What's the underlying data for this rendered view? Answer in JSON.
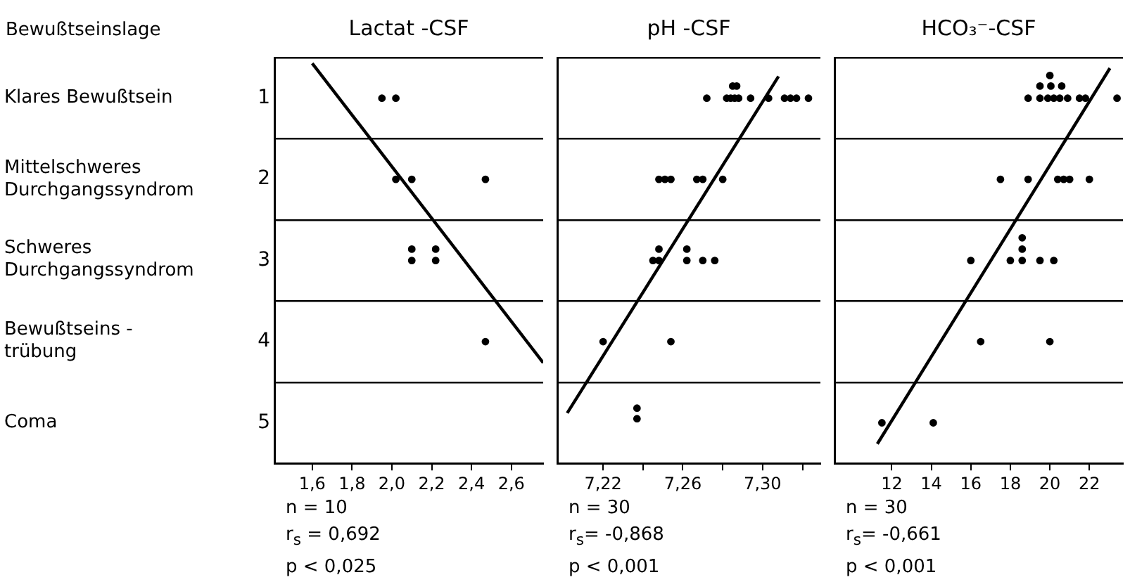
{
  "chart_data": [
    {
      "type": "other",
      "title": "Bewußtseinslage",
      "annotations": [
        "Klares Bewußtsein",
        "Mittelschweres\nDurchgangssyndrom",
        "Schweres\nDurchgangssyndrom",
        "Bewußtseins -\ntrübung",
        "Coma"
      ]
    },
    {
      "type": "scatter",
      "title": "Lactat -CSF",
      "grid": "y",
      "legend": false,
      "xlim": [
        1.41,
        2.76
      ],
      "xticks": [
        {
          "value": 1.6,
          "label": "1,6"
        },
        {
          "value": 1.8,
          "label": "1,8"
        },
        {
          "value": 2.0,
          "label": "2,0"
        },
        {
          "value": 2.2,
          "label": "2,2"
        },
        {
          "value": 2.4,
          "label": "2,4"
        },
        {
          "value": 2.6,
          "label": "2,6"
        }
      ],
      "ylim": [
        5.5,
        0.5
      ],
      "yticks": [
        1,
        2,
        3,
        4,
        5
      ],
      "series": [
        {
          "type": "scatter",
          "marker": "circle",
          "color": "#000000",
          "x": [
            1.95,
            2.02,
            2.02,
            2.1,
            2.47,
            2.1,
            2.1,
            2.22,
            2.22,
            2.47
          ],
          "values": [
            1,
            1,
            2,
            2,
            2,
            3,
            2.86,
            3,
            2.86,
            4
          ]
        },
        {
          "type": "line",
          "color": "#000000",
          "x": [
            1.6,
            2.76
          ],
          "values": [
            0.57,
            4.26
          ]
        }
      ],
      "annotations": [
        "n = 10",
        "r$_{s}$ = 0,692",
        "p < 0,025"
      ]
    },
    {
      "type": "scatter",
      "title": "pH -CSF",
      "grid": "y",
      "legend": false,
      "tick_labels": "x",
      "xlim": [
        7.197,
        7.329
      ],
      "xticks": [
        {
          "value": 7.22,
          "label": "7,22"
        },
        {
          "value": 7.24,
          "label": null
        },
        {
          "value": 7.26,
          "label": "7,26"
        },
        {
          "value": 7.28,
          "label": null
        },
        {
          "value": 7.3,
          "label": "7,30"
        },
        {
          "value": 7.32,
          "label": null
        }
      ],
      "ylim": [
        5.5,
        0.5
      ],
      "yticks": [
        1,
        2,
        3,
        4,
        5
      ],
      "series": [
        {
          "type": "scatter",
          "marker": "circle",
          "color": "#000000",
          "x": [
            7.272,
            7.282,
            7.284,
            7.286,
            7.288,
            7.294,
            7.303,
            7.311,
            7.314,
            7.317,
            7.323,
            7.285,
            7.287,
            7.248,
            7.251,
            7.254,
            7.267,
            7.27,
            7.28,
            7.245,
            7.248,
            7.248,
            7.262,
            7.262,
            7.27,
            7.276,
            7.22,
            7.254,
            7.237,
            7.237
          ],
          "values": [
            1,
            1,
            1,
            1,
            1,
            1,
            1,
            1,
            1,
            1,
            1,
            0.85,
            0.85,
            2,
            2,
            2,
            2,
            2,
            2,
            3,
            3,
            2.86,
            3,
            2.86,
            3,
            3,
            4,
            4,
            4.95,
            4.82
          ]
        },
        {
          "type": "line",
          "color": "#000000",
          "x": [
            7.202,
            7.308
          ],
          "values": [
            4.88,
            0.73
          ]
        }
      ],
      "annotations": [
        "n = 30",
        "r$_{s}$= -0,868",
        "p < 0,001"
      ]
    },
    {
      "type": "scatter",
      "title": "HCO₃⁻-CSF",
      "grid": "y",
      "legend": false,
      "tick_labels": "x",
      "xlim": [
        9.1,
        23.7
      ],
      "xticks": [
        12,
        14,
        16,
        18,
        20,
        22
      ],
      "ylim": [
        5.5,
        0.5
      ],
      "yticks": [
        1,
        2,
        3,
        4,
        5
      ],
      "series": [
        {
          "type": "scatter",
          "marker": "circle",
          "color": "#000000",
          "x": [
            18.9,
            19.5,
            19.9,
            20.2,
            20.5,
            20.9,
            21.5,
            21.8,
            23.4,
            19.5,
            20.05,
            20.6,
            20.0,
            17.5,
            18.9,
            20.4,
            20.7,
            21.0,
            22.0,
            16.0,
            18.0,
            18.6,
            18.6,
            18.6,
            19.5,
            20.2,
            16.5,
            20.0,
            11.5,
            14.1
          ],
          "values": [
            1,
            1,
            1,
            1,
            1,
            1,
            1,
            1,
            1,
            0.85,
            0.85,
            0.85,
            0.72,
            2,
            2,
            2,
            2,
            2,
            2,
            3,
            3,
            3,
            2.86,
            2.72,
            3,
            3,
            4,
            4,
            5,
            5
          ]
        },
        {
          "type": "line",
          "color": "#000000",
          "x": [
            11.27,
            23.04
          ],
          "values": [
            5.26,
            0.63
          ]
        }
      ],
      "annotations": [
        "n = 30",
        "r$_{s}$= -0,661",
        "p < 0,001"
      ]
    }
  ]
}
